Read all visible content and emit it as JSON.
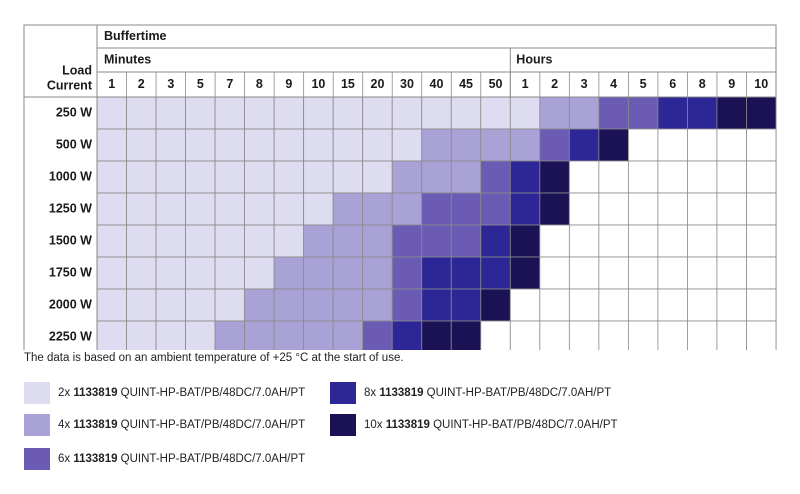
{
  "chart_data": {
    "type": "heatmap",
    "header": {
      "row_label": "Load Current",
      "title": "Buffertime",
      "group_minutes": "Minutes",
      "group_hours": "Hours"
    },
    "x_minutes": [
      "1",
      "2",
      "3",
      "5",
      "7",
      "8",
      "9",
      "10",
      "15",
      "20",
      "30",
      "40",
      "45",
      "50"
    ],
    "x_hours": [
      "1",
      "2",
      "3",
      "4",
      "5",
      "6",
      "8",
      "9",
      "10"
    ],
    "rows": [
      "250 W",
      "500 W",
      "1000 W",
      "1250 W",
      "1500 W",
      "1750 W",
      "2000 W",
      "2250 W"
    ],
    "levels": [
      {
        "count": 0,
        "color": "#ffffff"
      },
      {
        "count": 2,
        "color": "#dddcf0"
      },
      {
        "count": 4,
        "color": "#a9a2d7"
      },
      {
        "count": 6,
        "color": "#6b5bb5"
      },
      {
        "count": 8,
        "color": "#2c2696"
      },
      {
        "count": 10,
        "color": "#1b1256"
      }
    ],
    "matrix": [
      [
        2,
        2,
        2,
        2,
        2,
        2,
        2,
        2,
        2,
        2,
        2,
        2,
        2,
        2,
        2,
        4,
        4,
        6,
        6,
        8,
        8,
        10,
        10
      ],
      [
        2,
        2,
        2,
        2,
        2,
        2,
        2,
        2,
        2,
        2,
        2,
        4,
        4,
        4,
        4,
        6,
        8,
        10,
        0,
        0,
        0,
        0,
        0
      ],
      [
        2,
        2,
        2,
        2,
        2,
        2,
        2,
        2,
        2,
        2,
        4,
        4,
        4,
        6,
        8,
        10,
        0,
        0,
        0,
        0,
        0,
        0,
        0
      ],
      [
        2,
        2,
        2,
        2,
        2,
        2,
        2,
        2,
        4,
        4,
        4,
        6,
        6,
        6,
        8,
        10,
        0,
        0,
        0,
        0,
        0,
        0,
        0
      ],
      [
        2,
        2,
        2,
        2,
        2,
        2,
        2,
        4,
        4,
        4,
        6,
        6,
        6,
        8,
        10,
        0,
        0,
        0,
        0,
        0,
        0,
        0,
        0
      ],
      [
        2,
        2,
        2,
        2,
        2,
        2,
        4,
        4,
        4,
        4,
        6,
        8,
        8,
        8,
        10,
        0,
        0,
        0,
        0,
        0,
        0,
        0,
        0
      ],
      [
        2,
        2,
        2,
        2,
        2,
        4,
        4,
        4,
        4,
        4,
        6,
        8,
        8,
        10,
        0,
        0,
        0,
        0,
        0,
        0,
        0,
        0,
        0
      ],
      [
        2,
        2,
        2,
        2,
        4,
        4,
        4,
        4,
        4,
        6,
        8,
        10,
        10,
        0,
        0,
        0,
        0,
        0,
        0,
        0,
        0,
        0,
        0
      ]
    ],
    "note": "The data is based on an ambient temperature of +25 °C at the start of use."
  },
  "legend": [
    {
      "prefix": "2x ",
      "part": "1133819",
      "suffix": " QUINT-HP-BAT/PB/48DC/7.0AH/PT",
      "color": "#dddcf0"
    },
    {
      "prefix": "4x ",
      "part": "1133819",
      "suffix": " QUINT-HP-BAT/PB/48DC/7.0AH/PT",
      "color": "#a9a2d7"
    },
    {
      "prefix": "6x ",
      "part": "1133819",
      "suffix": " QUINT-HP-BAT/PB/48DC/7.0AH/PT",
      "color": "#6b5bb5"
    },
    {
      "prefix": "8x ",
      "part": "1133819",
      "suffix": " QUINT-HP-BAT/PB/48DC/7.0AH/PT",
      "color": "#2c2696"
    },
    {
      "prefix": "10x ",
      "part": "1133819",
      "suffix": " QUINT-HP-BAT/PB/48DC/7.0AH/PT",
      "color": "#1b1256"
    }
  ]
}
